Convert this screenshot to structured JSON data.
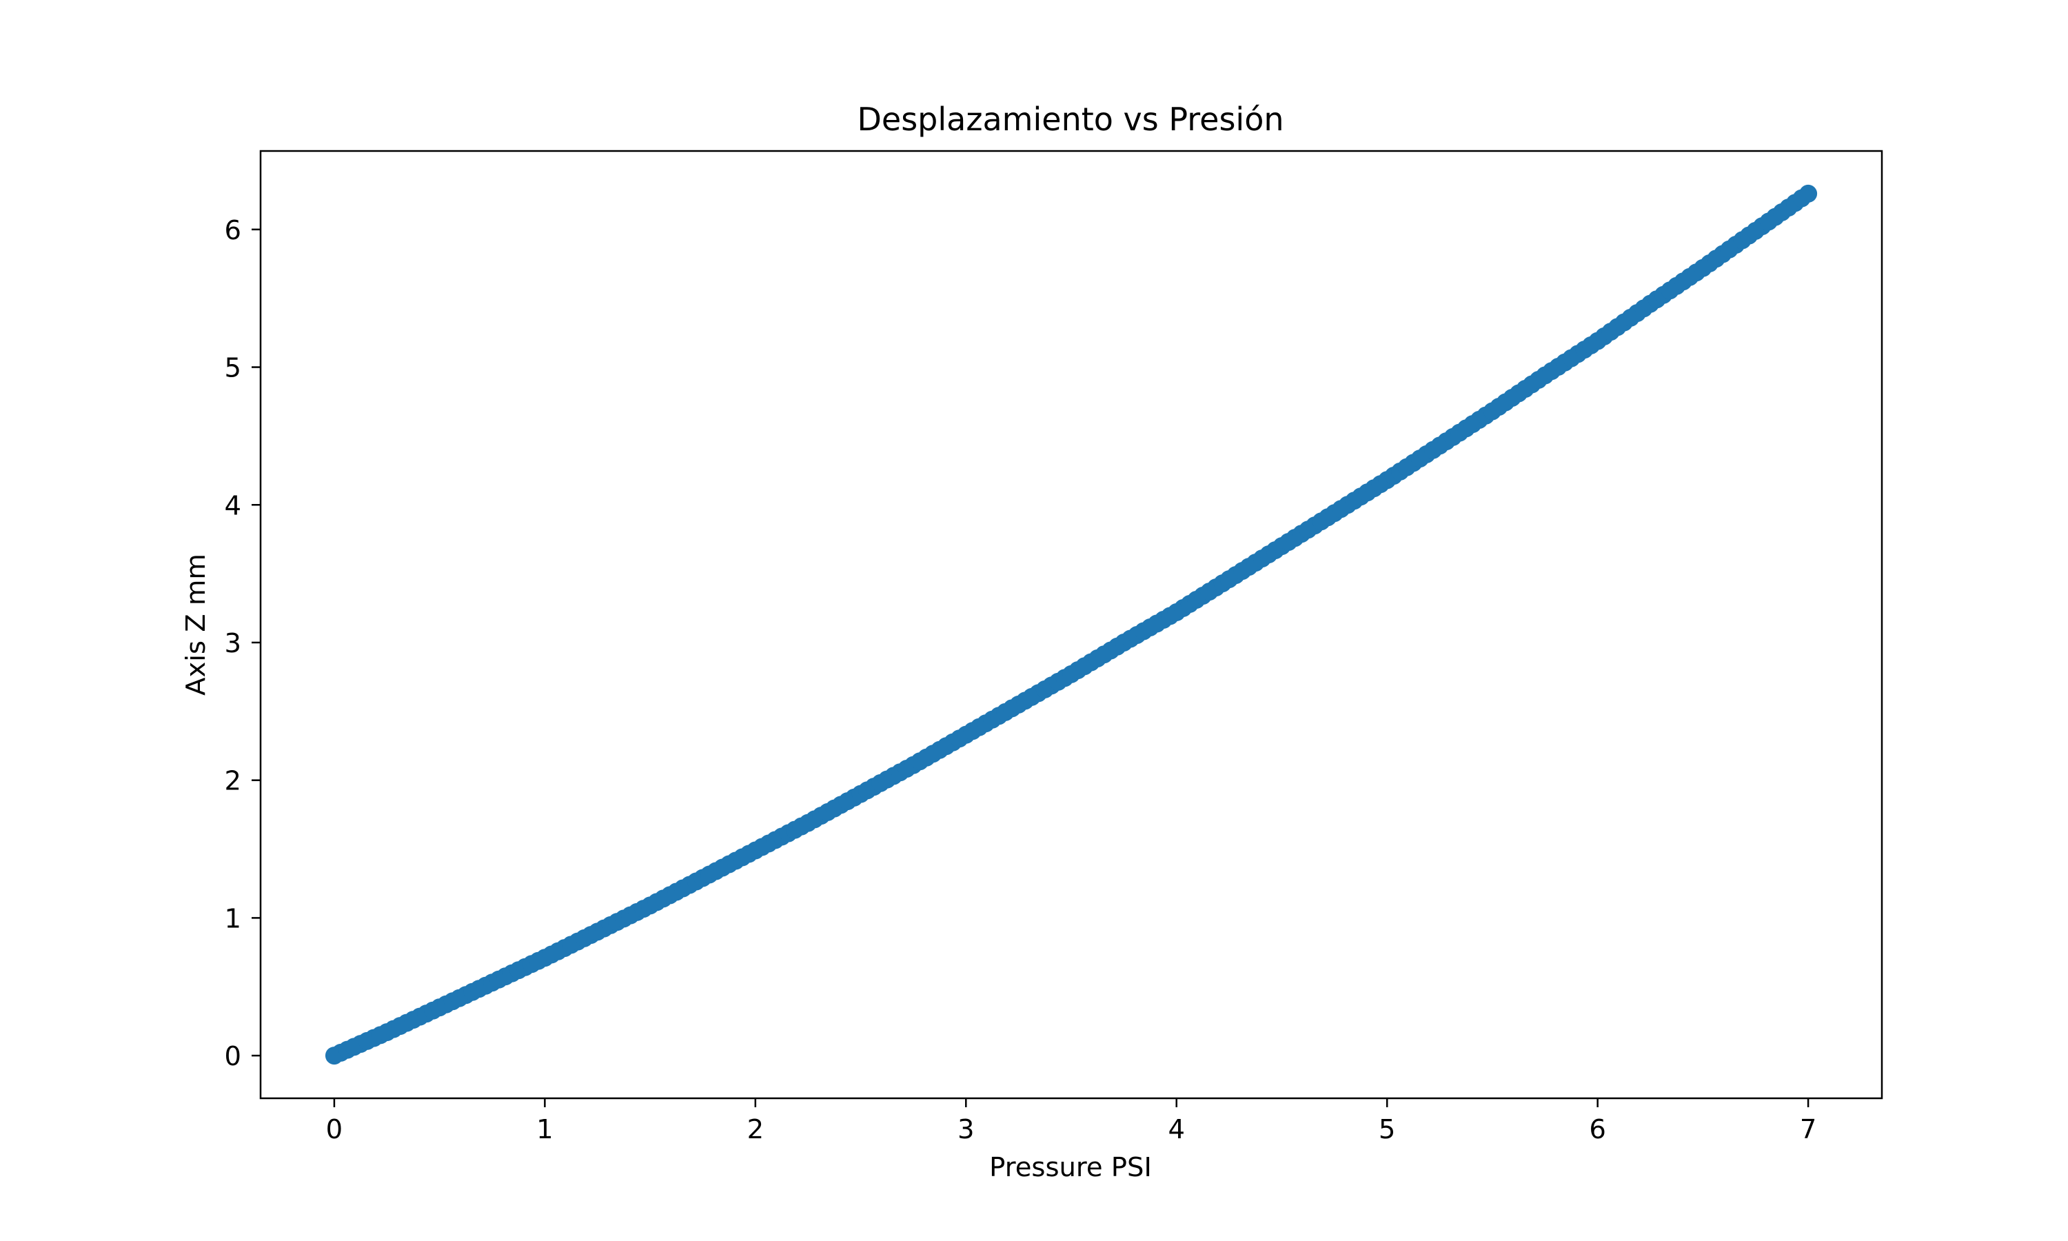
{
  "chart_data": {
    "type": "scatter",
    "title": "Desplazamiento vs Presión",
    "xlabel": "Pressure PSI",
    "ylabel": "Axis Z mm",
    "xlim": [
      -0.35,
      7.35
    ],
    "ylim": [
      -0.31,
      6.57
    ],
    "xticks": [
      0,
      1,
      2,
      3,
      4,
      5,
      6,
      7
    ],
    "yticks": [
      0,
      1,
      2,
      3,
      4,
      5,
      6
    ],
    "grid": false,
    "legend": "none",
    "marker_color": "#1f77b4",
    "series": [
      {
        "x": [
          0,
          0.25,
          0.5,
          0.75,
          1,
          1.25,
          1.5,
          1.75,
          2,
          2.25,
          2.5,
          2.75,
          3,
          3.25,
          3.5,
          3.75,
          4,
          4.25,
          4.5,
          4.75,
          5,
          5.25,
          5.5,
          5.75,
          6,
          6.25,
          6.5,
          6.75,
          7
        ],
        "y": [
          0,
          0.17,
          0.35,
          0.53,
          0.71,
          0.9,
          1.09,
          1.29,
          1.49,
          1.69,
          1.9,
          2.11,
          2.33,
          2.55,
          2.77,
          3.0,
          3.22,
          3.46,
          3.7,
          3.94,
          4.18,
          4.43,
          4.68,
          4.94,
          5.19,
          5.46,
          5.72,
          5.99,
          6.26
        ]
      }
    ]
  }
}
